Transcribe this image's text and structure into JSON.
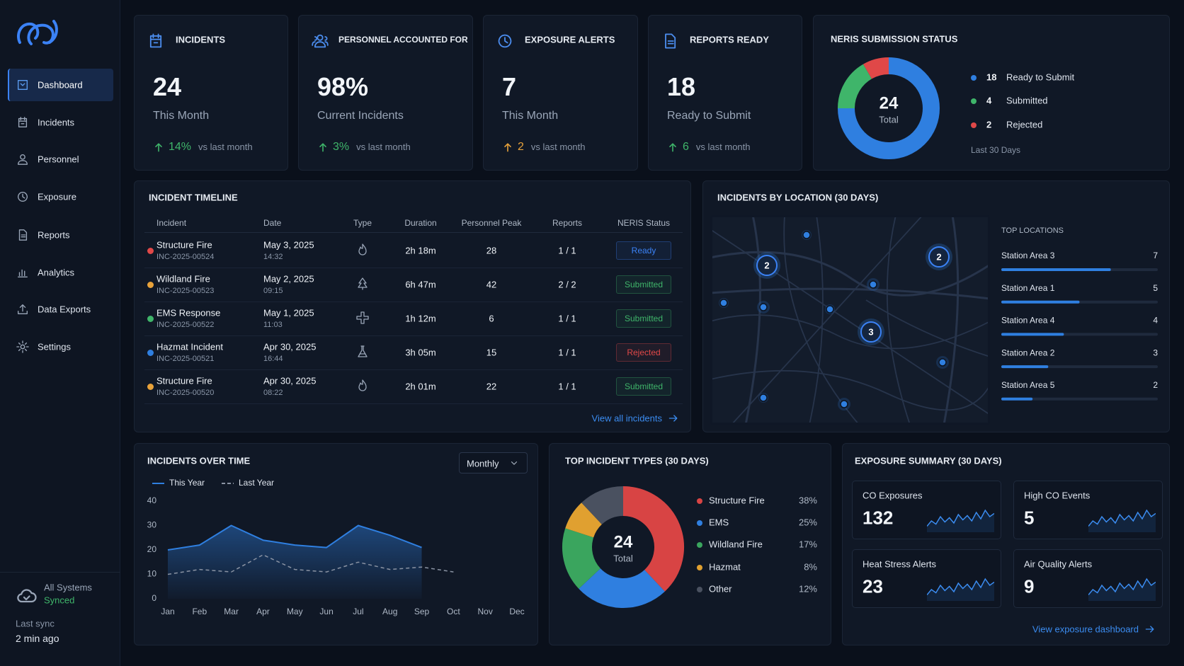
{
  "sidebar": {
    "nav": [
      "Dashboard",
      "Incidents",
      "Personnel",
      "Exposure",
      "Reports",
      "Analytics",
      "Data Exports",
      "Settings"
    ],
    "active": 0,
    "status": "All Systems",
    "status_state": "Synced",
    "sync_label": "Last sync",
    "sync_time": "2 min ago"
  },
  "kpis": [
    {
      "title": "INCIDENTS",
      "value": "24",
      "sub": "This Month",
      "delta": "14%",
      "note": "vs last month",
      "delta_color": "#3fb56a"
    },
    {
      "title": "PERSONNEL ACCOUNTED FOR",
      "value": "98%",
      "sub": "Current Incidents",
      "delta": "3%",
      "note": "vs last month",
      "delta_color": "#3fb56a"
    },
    {
      "title": "EXPOSURE ALERTS",
      "value": "7",
      "sub": "This Month",
      "delta": "2",
      "note": "vs last month",
      "delta_color": "#e8a23a"
    },
    {
      "title": "REPORTS READY",
      "value": "18",
      "sub": "Ready to Submit",
      "delta": "6",
      "note": "vs last month",
      "delta_color": "#3fb56a"
    }
  ],
  "timeline": {
    "title": "INCIDENT TIMELINE",
    "columns": [
      "Incident",
      "Date",
      "Type",
      "Duration",
      "Personnel Peak",
      "Reports",
      "NERIS Status"
    ],
    "rows": [
      {
        "name": "Structure Fire",
        "id": "INC-2025-00524",
        "date": "May 3, 2025",
        "time": "14:32",
        "duration": "2h 18m",
        "peak": 28,
        "reports": "1 / 1",
        "status": "Ready",
        "color": "#e04848",
        "status_color": "#3b82f6"
      },
      {
        "name": "Wildland Fire",
        "id": "INC-2025-00523",
        "date": "May 2, 2025",
        "time": "09:15",
        "duration": "6h 47m",
        "peak": 42,
        "reports": "2 / 2",
        "status": "Submitted",
        "color": "#e8a23a",
        "status_color": "#3fb56a"
      },
      {
        "name": "EMS Response",
        "id": "INC-2025-00522",
        "date": "May 1, 2025",
        "time": "11:03",
        "duration": "1h 12m",
        "peak": 6,
        "reports": "1 / 1",
        "status": "Submitted",
        "color": "#3fb56a",
        "status_color": "#3fb56a"
      },
      {
        "name": "Hazmat Incident",
        "id": "INC-2025-00521",
        "date": "Apr 30, 2025",
        "time": "16:44",
        "duration": "3h 05m",
        "peak": 15,
        "reports": "1 / 1",
        "status": "Rejected",
        "color": "#2f7fe0",
        "status_color": "#e04848"
      },
      {
        "name": "Structure Fire",
        "id": "INC-2025-00520",
        "date": "Apr 30, 2025",
        "time": "08:22",
        "duration": "2h 01m",
        "peak": 22,
        "reports": "1 / 1",
        "status": "Submitted",
        "color": "#e8a23a",
        "status_color": "#3fb56a"
      }
    ],
    "link": "View all incidents"
  },
  "map": {
    "clusters": [
      2,
      2,
      3
    ]
  },
  "exposure": {
    "title": "EXPOSURE SUMMARY (30 DAYS)",
    "cards": [
      {
        "label": "CO Exposures",
        "value": "132"
      },
      {
        "label": "High CO Events",
        "value": "5"
      },
      {
        "label": "Heat Stress Alerts",
        "value": "23"
      },
      {
        "label": "Air Quality Alerts",
        "value": "9"
      }
    ],
    "link": "View exposure dashboard"
  },
  "chart_data": [
    {
      "type": "donut",
      "title": "NERIS SUBMISSION STATUS",
      "center_value": 24,
      "center_label": "Total",
      "categories": [
        "Ready to Submit",
        "Submitted",
        "Rejected"
      ],
      "values": [
        18,
        4,
        2
      ],
      "colors": [
        "#2f7fe0",
        "#3fb56a",
        "#e04848"
      ],
      "note": "Last 30 Days"
    },
    {
      "type": "bar",
      "title": "INCIDENTS BY LOCATION (30 DAYS)",
      "subtitle": "TOP LOCATIONS",
      "categories": [
        "Station Area 3",
        "Station Area 1",
        "Station Area 4",
        "Station Area 2",
        "Station Area 5"
      ],
      "values": [
        7,
        5,
        4,
        3,
        2
      ],
      "color": "#2f7fe0",
      "xlim": [
        0,
        10
      ]
    },
    {
      "type": "line",
      "title": "INCIDENTS OVER TIME",
      "control": "Monthly",
      "categories": [
        "Jan",
        "Feb",
        "Mar",
        "Apr",
        "May",
        "Jun",
        "Jul",
        "Aug",
        "Sep",
        "Oct",
        "Nov",
        "Dec"
      ],
      "series": [
        {
          "name": "This Year",
          "color": "#2f7fe0",
          "values": [
            20,
            22,
            30,
            24,
            22,
            21,
            30,
            26,
            21,
            null,
            null,
            null
          ],
          "fill": true
        },
        {
          "name": "Last Year",
          "color": "#8a93a3",
          "values": [
            10,
            12,
            11,
            18,
            12,
            11,
            15,
            12,
            13,
            11,
            null,
            null
          ],
          "dashed": true
        }
      ],
      "ylim": [
        0,
        40
      ],
      "yticks": [
        0,
        10,
        20,
        30,
        40
      ],
      "grid": false
    },
    {
      "type": "donut",
      "title": "TOP INCIDENT TYPES (30 DAYS)",
      "center_value": 24,
      "center_label": "Total",
      "categories": [
        "Structure Fire",
        "EMS",
        "Wildland Fire",
        "Hazmat",
        "Other"
      ],
      "values": [
        38,
        25,
        17,
        8,
        12
      ],
      "value_labels": [
        "38%",
        "25%",
        "17%",
        "8%",
        "12%"
      ],
      "colors": [
        "#d84444",
        "#2f7fe0",
        "#3aa55e",
        "#e0a030",
        "#4a5160"
      ]
    }
  ]
}
